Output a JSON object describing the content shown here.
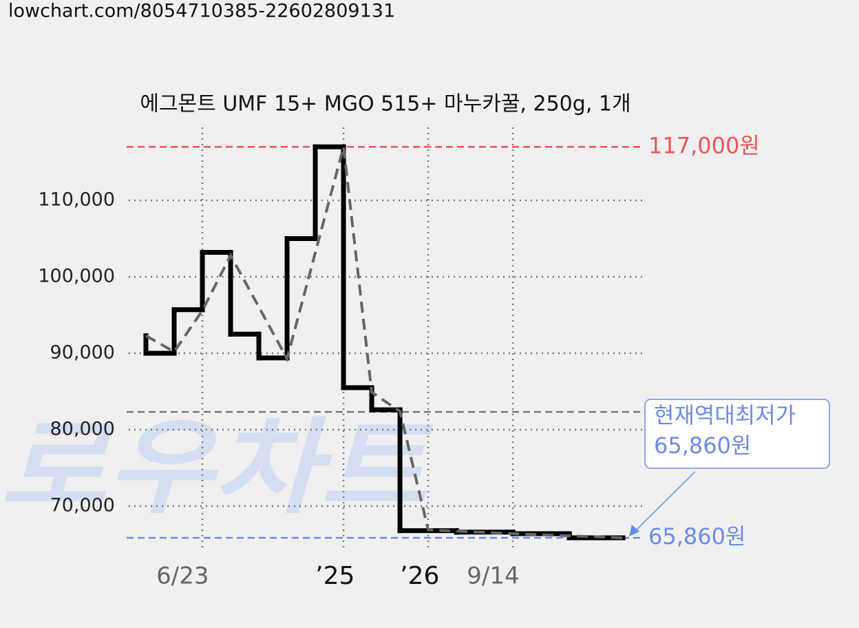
{
  "source": "lowchart.com/8054710385-22602809131",
  "watermark": "로우차트",
  "chart_data": {
    "type": "step",
    "title": "에그몬트 UMF 15+ MGO 515+ 마누카꿀, 250g, 1개",
    "xlim": [
      -0.61,
      17.63
    ],
    "ylim": [
      64150,
      119550
    ],
    "yticks": [
      {
        "value": 70000,
        "label": "70,000"
      },
      {
        "value": 80000,
        "label": "80,000"
      },
      {
        "value": 90000,
        "label": "90,000"
      },
      {
        "value": 100000,
        "label": "100,000"
      },
      {
        "value": 110000,
        "label": "110,000"
      }
    ],
    "xticks": [
      {
        "value": 2,
        "label": "6/23",
        "color": "#666666"
      },
      {
        "value": 7,
        "label": "’25",
        "color": "#111111"
      },
      {
        "value": 10,
        "label": "’26",
        "color": "#111111"
      },
      {
        "value": 13,
        "label": "9/14",
        "color": "#666666"
      }
    ],
    "grid": true,
    "series": [
      {
        "style": "step",
        "color": "#000000",
        "x": [
          0,
          0,
          1,
          2,
          3,
          4,
          5,
          6,
          7,
          8,
          9,
          11,
          13,
          15,
          16.9
        ],
        "values": [
          92300,
          90000,
          95700,
          103200,
          92500,
          89400,
          105000,
          117000,
          85500,
          82600,
          66800,
          66600,
          66400,
          65860,
          65860
        ]
      },
      {
        "style": "dashed",
        "color": "#666666",
        "x": [
          0,
          1,
          2,
          3,
          5,
          7,
          8,
          9,
          10,
          13,
          16.9
        ],
        "values": [
          92300,
          90200,
          95600,
          102800,
          89300,
          117000,
          84900,
          82400,
          66900,
          66400,
          65860
        ]
      }
    ],
    "reference_lines": [
      {
        "value": 117000,
        "label": "117,000원",
        "color": "#f05454"
      },
      {
        "value": 82340,
        "color": "#777777"
      },
      {
        "value": 65860,
        "label": "65,860원",
        "color": "#6a8be8"
      }
    ],
    "annotation": {
      "lines": [
        "현재역대최저가",
        "65,860원"
      ],
      "color": "#6a8be8"
    }
  }
}
